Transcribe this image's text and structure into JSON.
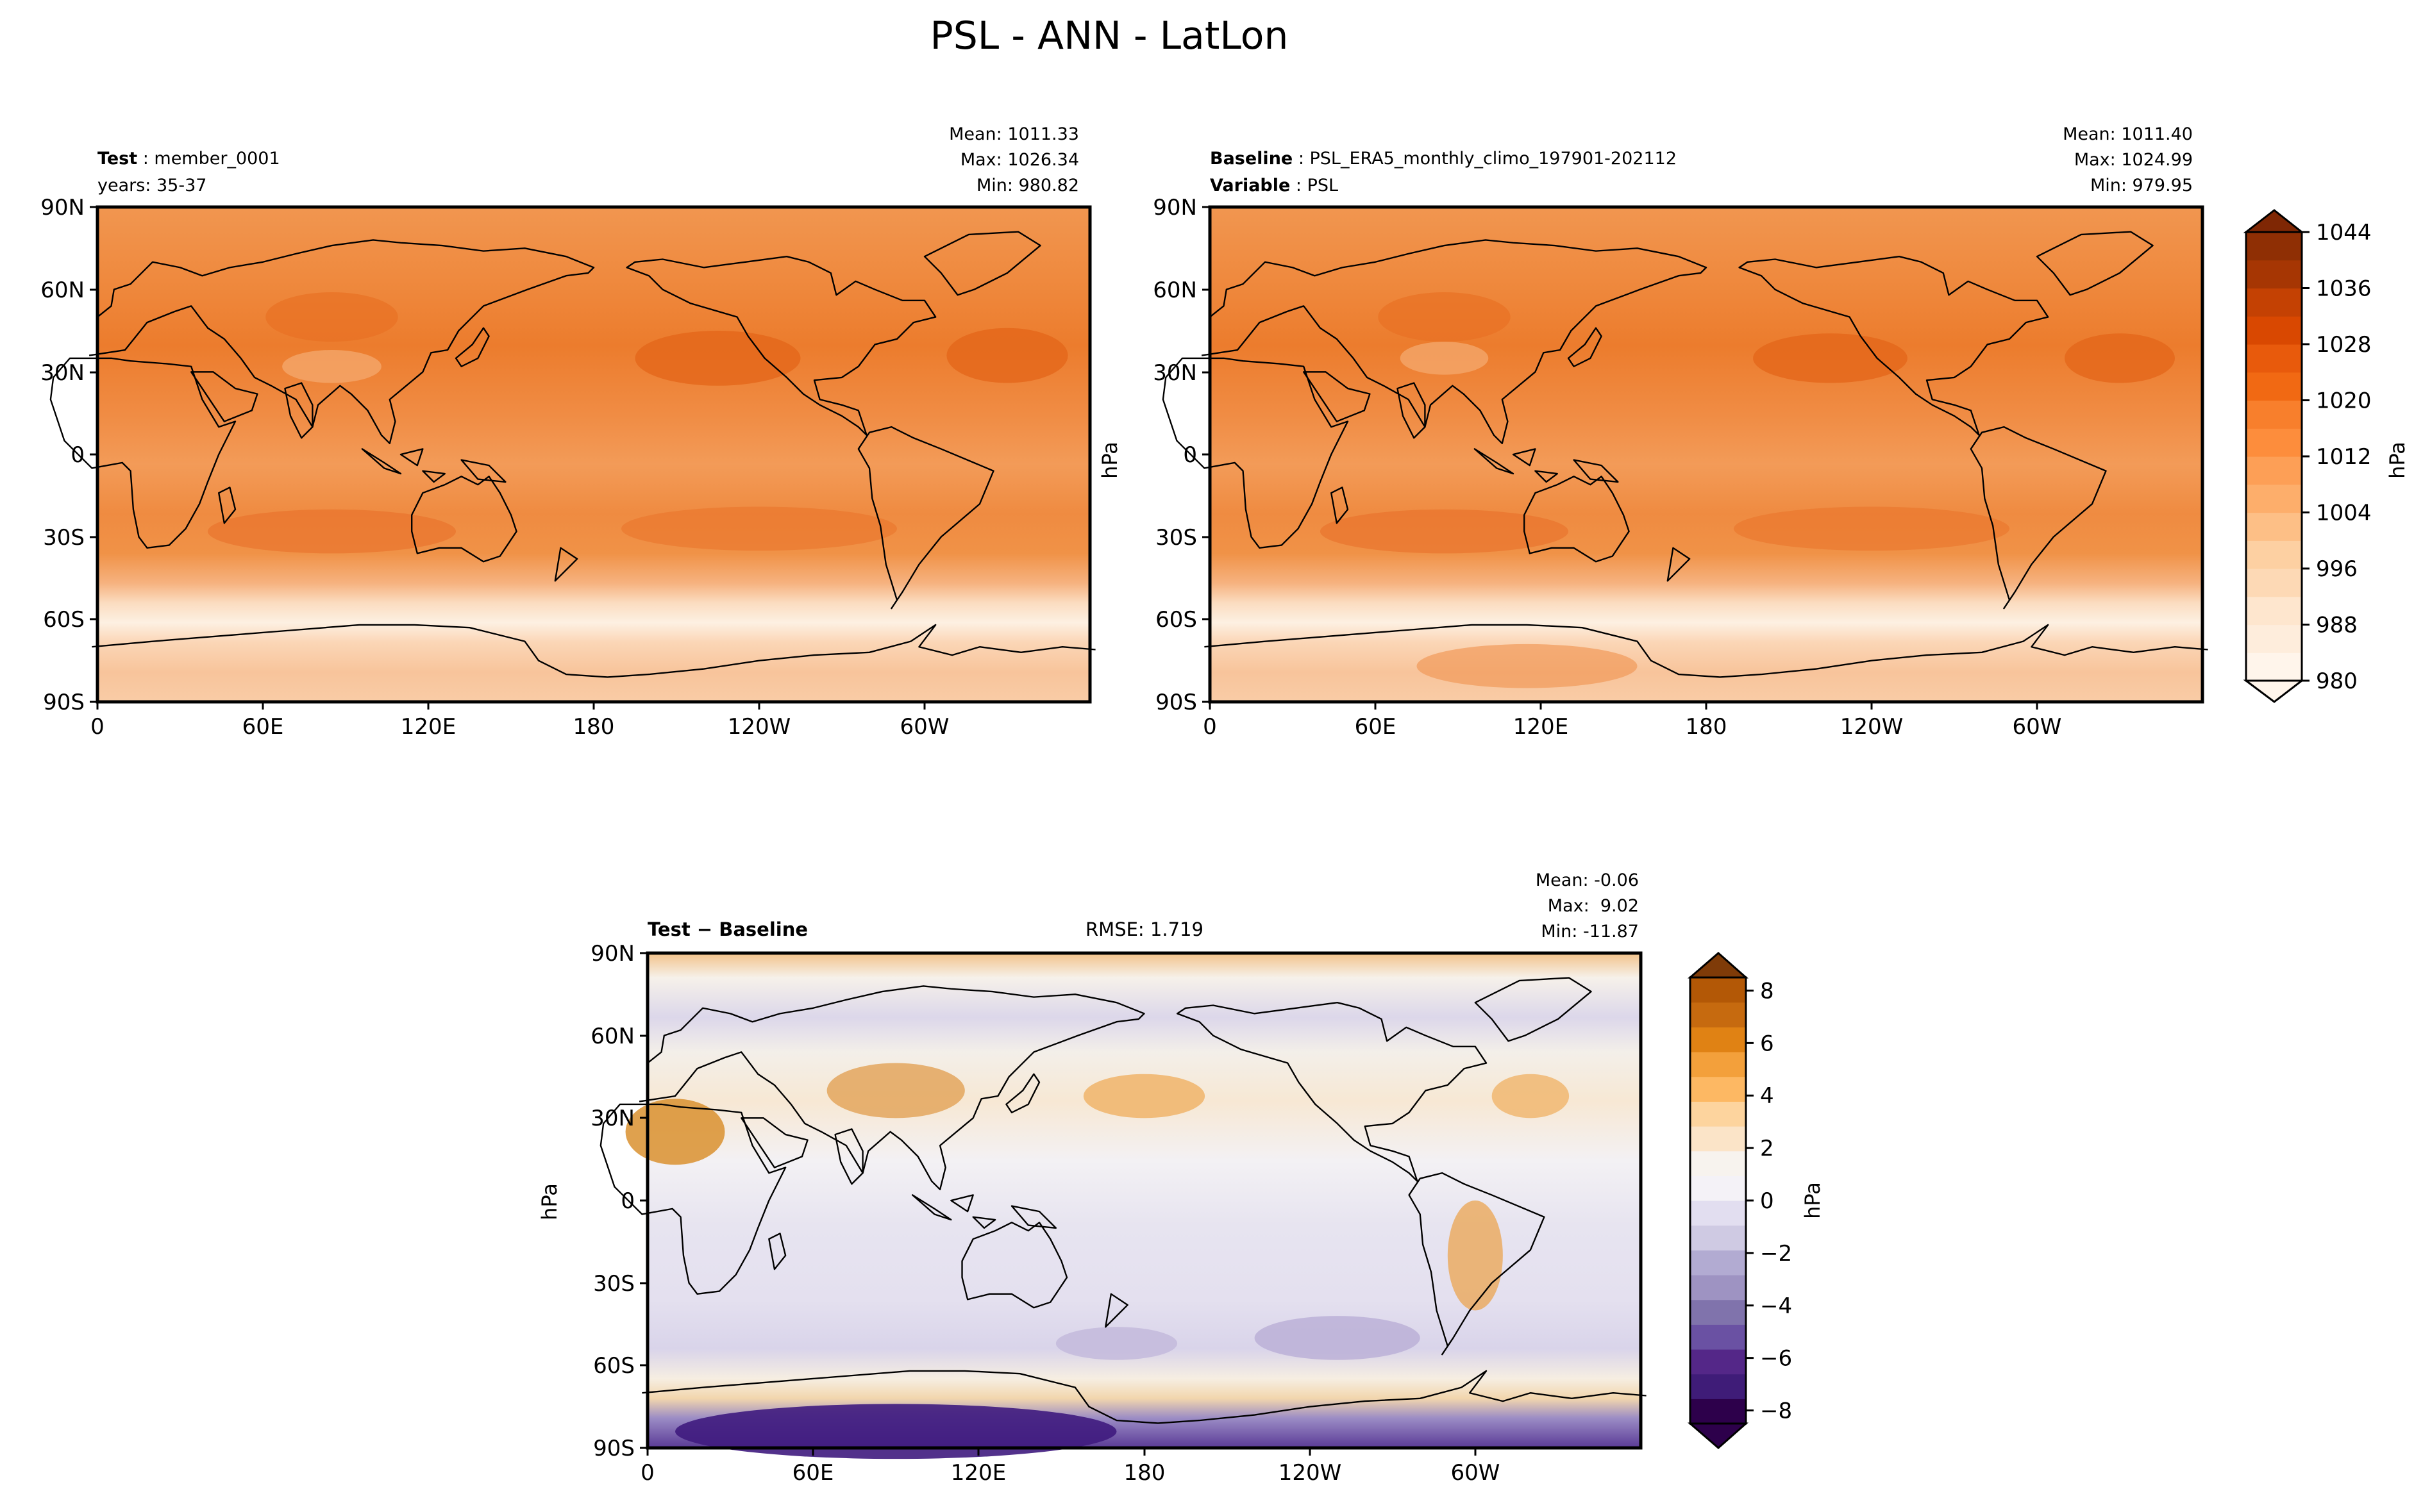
{
  "figure": {
    "title": "PSL - ANN - LatLon"
  },
  "panels": {
    "test": {
      "label_bold": "Test",
      "label_value": "member_0001",
      "line2": "years: 35-37",
      "stats": {
        "mean": "Mean: 1011.33",
        "max": "Max: 1026.34",
        "min": "Min: 980.82"
      }
    },
    "baseline": {
      "label_bold": "Baseline",
      "label_value": "PSL_ERA5_monthly_climo_197901-202112",
      "var_bold": "Variable",
      "var_value": "PSL",
      "unit": "hPa",
      "stats": {
        "mean": "Mean: 1011.40",
        "max": "Max: 1024.99",
        "min": "Min: 979.95"
      }
    },
    "diff": {
      "label": "Test − Baseline",
      "rmse": "RMSE: 1.719",
      "unit": "hPa",
      "stats": {
        "mean": "Mean: -0.06",
        "max": "Max:  9.02",
        "min": "Min: -11.87"
      }
    }
  },
  "colorbars": {
    "psl": {
      "unit": "hPa",
      "ticks": [
        "980",
        "988",
        "996",
        "1004",
        "1012",
        "1020",
        "1028",
        "1036",
        "1044"
      ]
    },
    "diff": {
      "unit": "hPa",
      "ticks": [
        "−8",
        "−6",
        "−4",
        "−2",
        "0",
        "2",
        "4",
        "6",
        "8"
      ]
    }
  },
  "colors": {
    "psl_main": "#e8691f",
    "psl_light": "#fdebd9",
    "diff_warm": "#b5650f",
    "diff_cool": "#4a2a8a"
  },
  "chart_data": [
    {
      "type": "heatmap",
      "title": "Test: member_0001 (years: 35-37)",
      "variable": "PSL",
      "units": "hPa",
      "xticks": [
        "0",
        "60E",
        "120E",
        "180",
        "120W",
        "60W"
      ],
      "yticks": [
        "90N",
        "60N",
        "30N",
        "0",
        "30S",
        "60S",
        "90S"
      ],
      "clim": [
        980,
        1044
      ],
      "stats": {
        "mean": 1011.33,
        "max": 1026.34,
        "min": 980.82
      }
    },
    {
      "type": "heatmap",
      "title": "Baseline: PSL_ERA5_monthly_climo_197901-202112",
      "variable": "PSL",
      "units": "hPa",
      "xticks": [
        "0",
        "60E",
        "120E",
        "180",
        "120W",
        "60W"
      ],
      "yticks": [
        "90N",
        "60N",
        "30N",
        "0",
        "30S",
        "60S",
        "90S"
      ],
      "clim": [
        980,
        1044
      ],
      "stats": {
        "mean": 1011.4,
        "max": 1024.99,
        "min": 979.95
      }
    },
    {
      "type": "heatmap",
      "title": "Test - Baseline",
      "variable": "PSL",
      "units": "hPa",
      "xticks": [
        "0",
        "60E",
        "120E",
        "180",
        "120W",
        "60W"
      ],
      "yticks": [
        "90N",
        "60N",
        "30N",
        "0",
        "30S",
        "60S",
        "90S"
      ],
      "clim": [
        -8,
        8
      ],
      "rmse": 1.719,
      "stats": {
        "mean": -0.06,
        "max": 9.02,
        "min": -11.87
      }
    }
  ]
}
